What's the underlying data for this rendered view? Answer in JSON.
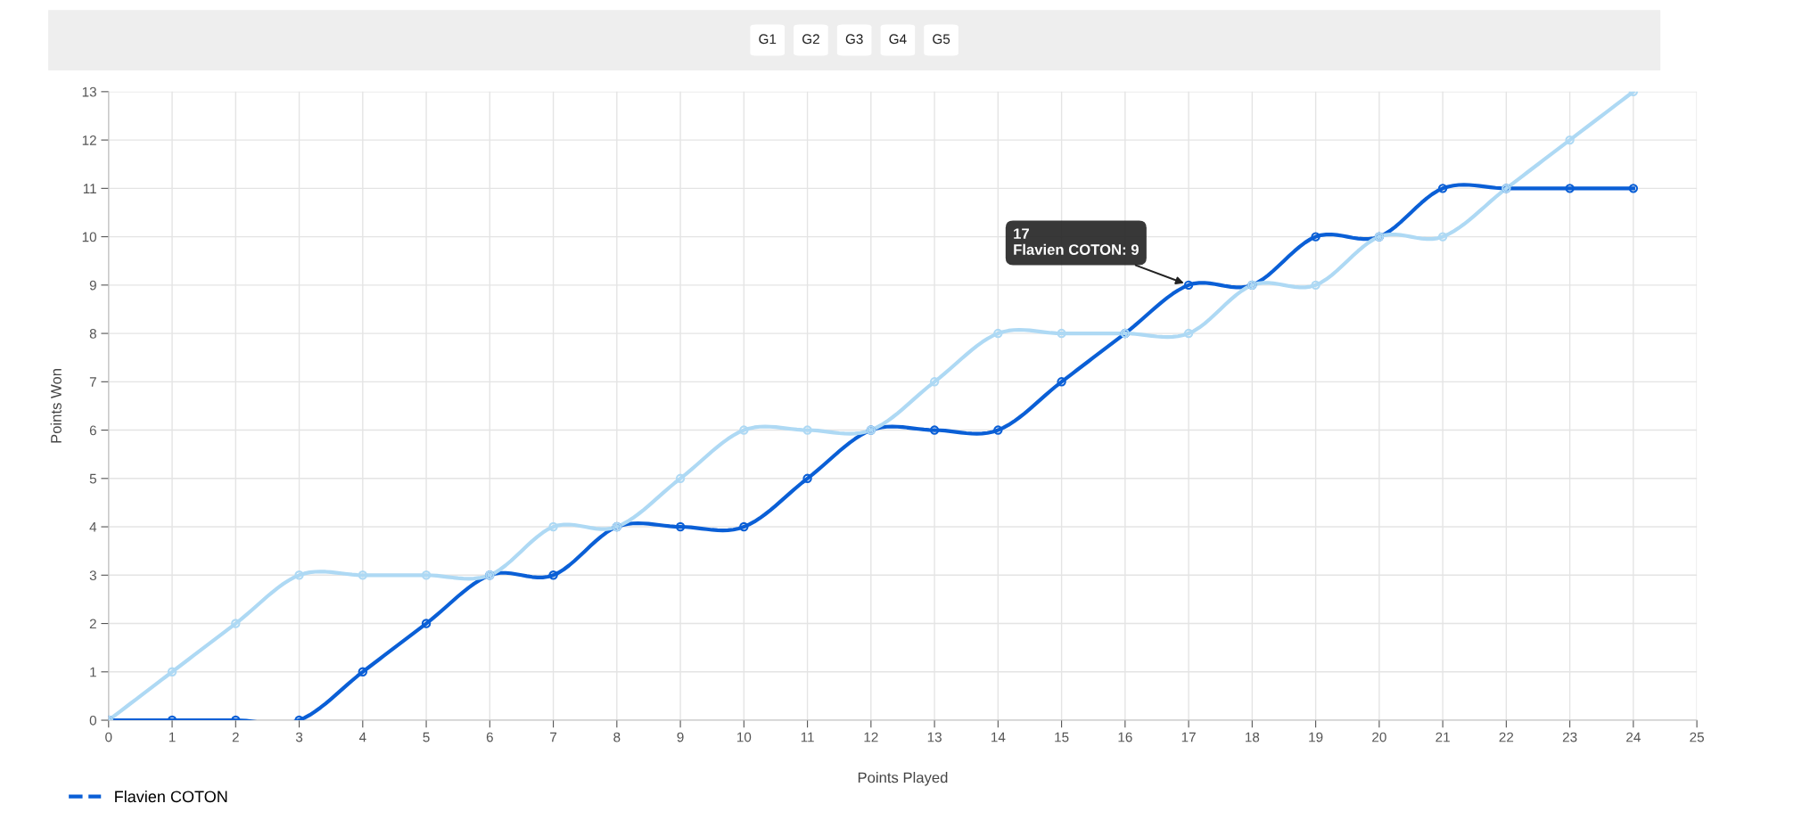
{
  "chart_data": {
    "type": "line",
    "xlabel": "Points Played",
    "ylabel": "Points Won",
    "x": [
      0,
      1,
      2,
      3,
      4,
      5,
      6,
      7,
      8,
      9,
      10,
      11,
      12,
      13,
      14,
      15,
      16,
      17,
      18,
      19,
      20,
      21,
      22,
      23,
      24
    ],
    "series": [
      {
        "name": "Flavien COTON",
        "color": "#0a5fd6",
        "values": [
          0,
          0,
          0,
          0,
          1,
          2,
          3,
          3,
          4,
          4,
          4,
          5,
          6,
          6,
          6,
          7,
          8,
          9,
          9,
          10,
          10,
          11,
          11,
          11,
          11
        ]
      },
      {
        "color": "#aed9f4",
        "values": [
          0,
          1,
          2,
          3,
          3,
          3,
          3,
          4,
          4,
          5,
          6,
          6,
          6,
          7,
          8,
          8,
          8,
          8,
          9,
          9,
          10,
          10,
          11,
          12,
          13
        ]
      }
    ],
    "xlim": [
      0,
      25
    ],
    "xticks": [
      0,
      1,
      2,
      3,
      4,
      5,
      6,
      7,
      8,
      9,
      10,
      11,
      12,
      13,
      14,
      15,
      16,
      17,
      18,
      19,
      20,
      21,
      22,
      23,
      24,
      25
    ],
    "ylim": [
      0,
      13
    ],
    "yticks": [
      0,
      1,
      2,
      3,
      4,
      5,
      6,
      7,
      8,
      9,
      10,
      11,
      12,
      13
    ],
    "grid": true,
    "marker": "circle",
    "line_style": "solid",
    "legend": "bottom left",
    "annotations": [
      "G1",
      "G2",
      "G3",
      "G4",
      "G5",
      {
        "text": "17\nFlavien COTON: 9",
        "x": 17,
        "y": 9
      }
    ]
  }
}
